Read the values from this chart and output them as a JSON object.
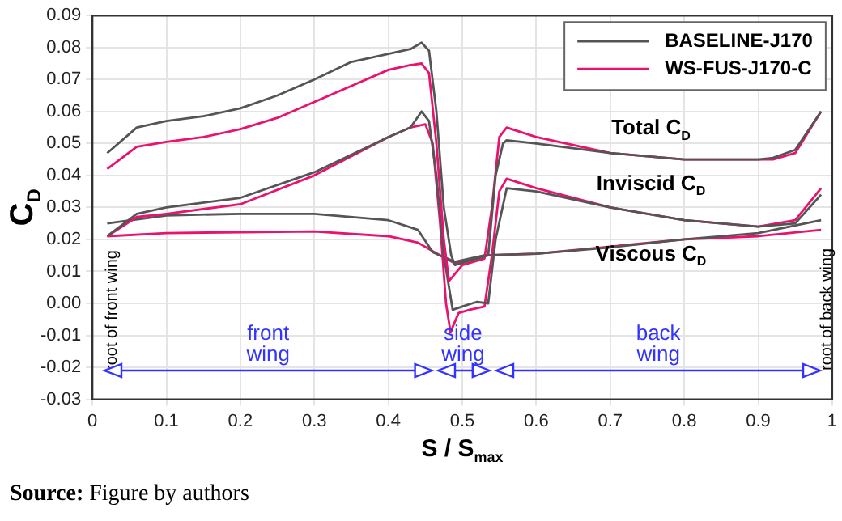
{
  "chart_data": {
    "type": "line",
    "xlabel": "S / S$_{max}$",
    "ylabel": "C$_{D}$",
    "xlim": [
      0,
      1
    ],
    "xticks": [
      0,
      0.1,
      0.2,
      0.3,
      0.4,
      0.5,
      0.6,
      0.7,
      0.8,
      0.9,
      1
    ],
    "ylim": [
      -0.03,
      0.09
    ],
    "yticks": [
      -0.03,
      -0.02,
      -0.01,
      {
        "value": 0,
        "label": "0.00"
      },
      0.01,
      0.02,
      0.03,
      0.04,
      0.05,
      0.06,
      0.07,
      0.08,
      0.09
    ],
    "grid": true,
    "legend": "top right",
    "marker": "none",
    "line_style": "solid",
    "series": [
      {
        "name": "BASELINE-J170",
        "color": "#555555",
        "x": [
          0.02,
          0.06,
          0.1,
          0.15,
          0.2,
          0.25,
          0.3,
          0.35,
          0.4,
          0.43,
          0.445,
          0.455,
          0.465,
          0.475,
          0.485,
          0.49,
          0.52,
          0.535,
          0.545,
          0.555,
          0.56,
          0.6,
          0.7,
          0.8,
          0.9,
          0.92,
          0.95,
          0.985
        ],
        "values": [
          0.047,
          0.055,
          0.057,
          0.0585,
          0.061,
          0.065,
          0.07,
          0.0755,
          0.078,
          0.0795,
          0.0815,
          0.079,
          0.06,
          0.03,
          0.015,
          0.012,
          0.014,
          0.015,
          0.04,
          0.05,
          0.051,
          0.05,
          0.047,
          0.045,
          0.045,
          0.0455,
          0.048,
          0.06
        ]
      },
      {
        "name": "WS-FUS-J170-C",
        "color": "#e8136e",
        "x": [
          0.02,
          0.06,
          0.1,
          0.15,
          0.2,
          0.25,
          0.3,
          0.35,
          0.4,
          0.43,
          0.445,
          0.455,
          0.465,
          0.475,
          0.482,
          0.5,
          0.53,
          0.54,
          0.55,
          0.56,
          0.6,
          0.7,
          0.8,
          0.9,
          0.92,
          0.95,
          0.985
        ],
        "values": [
          0.042,
          0.049,
          0.0505,
          0.052,
          0.0545,
          0.058,
          0.063,
          0.068,
          0.073,
          0.0745,
          0.075,
          0.072,
          0.05,
          0.02,
          0.007,
          0.012,
          0.014,
          0.03,
          0.052,
          0.055,
          0.052,
          0.047,
          0.045,
          0.045,
          0.045,
          0.047,
          0.06
        ]
      },
      {
        "color": "#555555",
        "x": [
          0.02,
          0.06,
          0.1,
          0.2,
          0.3,
          0.4,
          0.43,
          0.445,
          0.455,
          0.465,
          0.475,
          0.487,
          0.5,
          0.52,
          0.535,
          0.545,
          0.56,
          0.6,
          0.7,
          0.8,
          0.9,
          0.95,
          0.985
        ],
        "values": [
          0.021,
          0.028,
          0.03,
          0.033,
          0.041,
          0.052,
          0.055,
          0.06,
          0.057,
          0.04,
          0.015,
          -0.002,
          -0.001,
          0.0005,
          0,
          0.02,
          0.036,
          0.035,
          0.03,
          0.026,
          0.024,
          0.025,
          0.034
        ]
      },
      {
        "color": "#e8136e",
        "x": [
          0.02,
          0.06,
          0.1,
          0.2,
          0.3,
          0.4,
          0.43,
          0.45,
          0.46,
          0.47,
          0.478,
          0.484,
          0.495,
          0.51,
          0.53,
          0.54,
          0.55,
          0.56,
          0.6,
          0.7,
          0.8,
          0.9,
          0.95,
          0.985
        ],
        "values": [
          0.021,
          0.027,
          0.028,
          0.031,
          0.04,
          0.052,
          0.055,
          0.056,
          0.05,
          0.025,
          0,
          -0.009,
          -0.003,
          -0.002,
          -0.001,
          0.015,
          0.035,
          0.039,
          0.036,
          0.03,
          0.026,
          0.024,
          0.026,
          0.036
        ]
      },
      {
        "color": "#555555",
        "x": [
          0.02,
          0.1,
          0.2,
          0.3,
          0.4,
          0.44,
          0.46,
          0.47,
          0.49,
          0.53,
          0.6,
          0.7,
          0.8,
          0.9,
          0.985
        ],
        "values": [
          0.025,
          0.0275,
          0.028,
          0.028,
          0.026,
          0.023,
          0.016,
          0.015,
          0.013,
          0.015,
          0.0155,
          0.0175,
          0.02,
          0.022,
          0.026
        ]
      },
      {
        "color": "#e8136e",
        "x": [
          0.02,
          0.1,
          0.3,
          0.4,
          0.44,
          0.47,
          0.49,
          0.53,
          0.6,
          0.8,
          0.9,
          0.985
        ],
        "values": [
          0.021,
          0.022,
          0.0225,
          0.021,
          0.019,
          0.015,
          0.0125,
          0.015,
          0.0155,
          0.02,
          0.021,
          0.023
        ]
      }
    ],
    "annotations": [
      "Total C$_{D}$",
      "Inviscid C$_{D}$",
      "Viscous C$_{D}$",
      "root of front wing",
      "root of back wing",
      "front wing",
      "side wing",
      "back wing",
      "Source: Figure by authors"
    ]
  }
}
